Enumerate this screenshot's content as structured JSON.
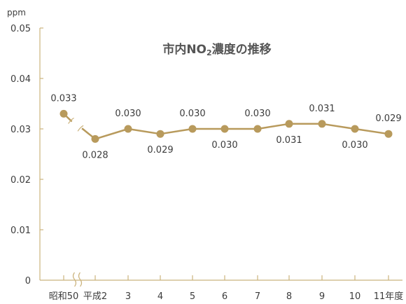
{
  "chart_data": {
    "type": "line",
    "title_parts": {
      "prefix": "市内NO",
      "subscript": "2",
      "suffix": "濃度の推移"
    },
    "ylabel": "ppm",
    "ylim": [
      0,
      0.05
    ],
    "yticks": [
      "0",
      "0.01",
      "0.02",
      "0.03",
      "0.04",
      "0.05"
    ],
    "categories": [
      "昭和50",
      "平成2",
      "3",
      "4",
      "5",
      "6",
      "7",
      "8",
      "9",
      "10",
      "11年度"
    ],
    "values": [
      0.033,
      0.028,
      0.03,
      0.029,
      0.03,
      0.03,
      0.03,
      0.031,
      0.031,
      0.03,
      0.029
    ],
    "value_labels": [
      "0.033",
      "0.028",
      "0.030",
      "0.029",
      "0.030",
      "0.030",
      "0.030",
      "0.031",
      "0.031",
      "0.030",
      "0.029"
    ],
    "axis_break_after_index": 0,
    "colors": {
      "line": "#b89a5c",
      "axis": "#cbb37d"
    }
  }
}
